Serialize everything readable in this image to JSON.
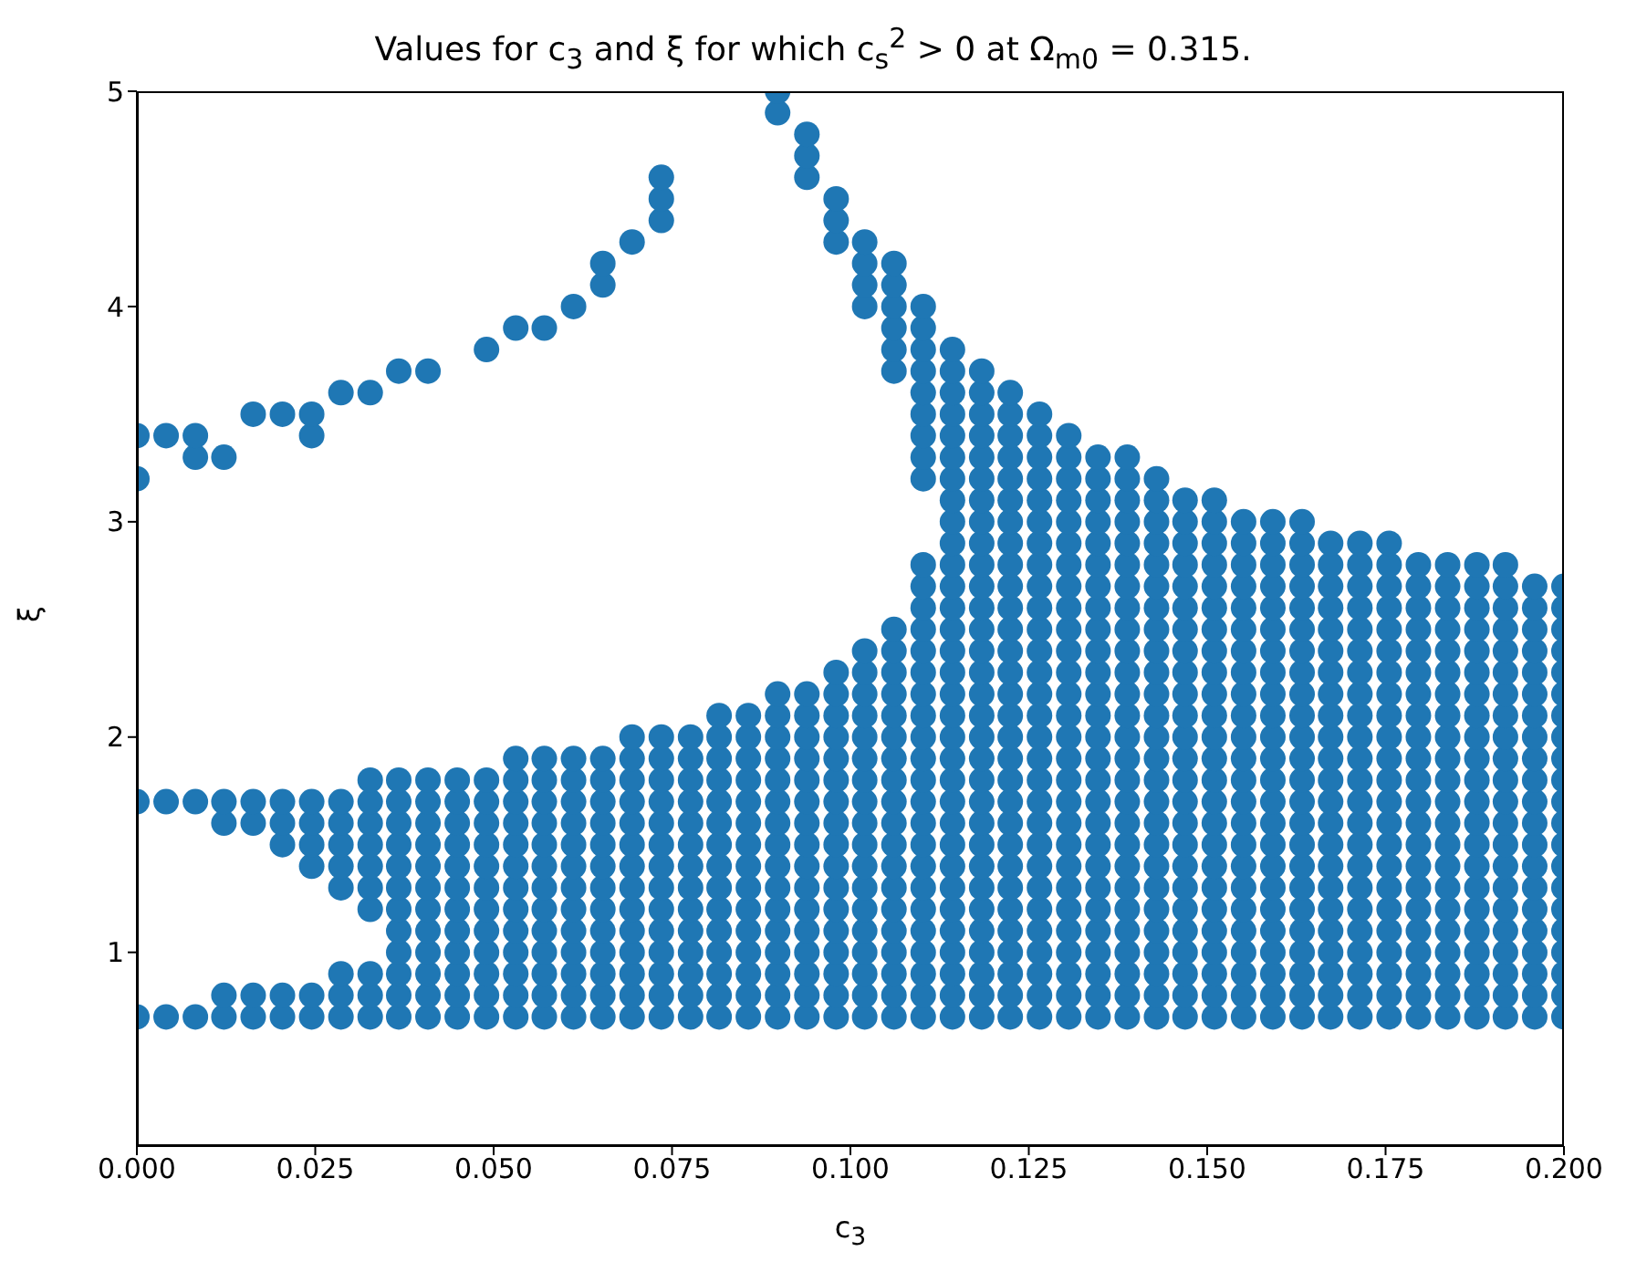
{
  "chart_data": {
    "type": "scatter",
    "title": "Values for c$_{3}$ and ξ for which c$_{s}$$^{2}$ > 0 at Ω$_{m0}$ = 0.315.",
    "xlabel": "c$_{3}$",
    "ylabel": "ξ",
    "color": "#1f77b4",
    "marker": "circle",
    "grid": false,
    "legend": false,
    "xlim": [
      0,
      0.2
    ],
    "ylim": [
      0.1,
      5
    ],
    "xticks": [
      {
        "value": 0,
        "label": "0.000"
      },
      {
        "value": 0.025,
        "label": "0.025"
      },
      {
        "value": 0.05,
        "label": "0.050"
      },
      {
        "value": 0.075,
        "label": "0.075"
      },
      {
        "value": 0.1,
        "label": "0.100"
      },
      {
        "value": 0.125,
        "label": "0.125"
      },
      {
        "value": 0.15,
        "label": "0.150"
      },
      {
        "value": 0.175,
        "label": "0.175"
      },
      {
        "value": 0.2,
        "label": "0.200"
      }
    ],
    "yticks": [
      1,
      2,
      3,
      4,
      5
    ],
    "series": [
      {
        "x": [
          0,
          0,
          0,
          0
        ],
        "values": [
          0.7,
          1.7,
          3.2,
          3.4
        ]
      },
      {
        "x": [
          0.0041,
          0.0041,
          0.0041
        ],
        "values": [
          0.7,
          1.7,
          3.4
        ]
      },
      {
        "x": [
          0.0082,
          0.0082,
          0.0082,
          0.0082
        ],
        "values": [
          0.7,
          1.7,
          3.3,
          3.4
        ]
      },
      {
        "x": [
          0.0122,
          0.0122,
          0.0122,
          0.0122,
          0.0122
        ],
        "values": [
          0.7,
          0.8,
          1.6,
          1.7,
          3.3
        ]
      },
      {
        "x": [
          0.0163,
          0.0163,
          0.0163,
          0.0163,
          0.0163
        ],
        "values": [
          0.7,
          0.8,
          1.6,
          1.7,
          3.5
        ]
      },
      {
        "x": [
          0.0204,
          0.0204,
          0.0204,
          0.0204,
          0.0204,
          0.0204
        ],
        "values": [
          0.7,
          0.8,
          1.5,
          1.6,
          1.7,
          3.5
        ]
      },
      {
        "x": [
          0.0245,
          0.0245,
          0.0245,
          0.0245,
          0.0245,
          0.0245,
          0.0245,
          0.0245
        ],
        "values": [
          0.7,
          0.8,
          1.4,
          1.5,
          1.6,
          1.7,
          3.4,
          3.5
        ]
      },
      {
        "x": [
          0.0286,
          0.0286,
          0.0286,
          0.0286,
          0.0286,
          0.0286,
          0.0286,
          0.0286,
          0.0286
        ],
        "values": [
          0.7,
          0.8,
          0.9,
          1.3,
          1.4,
          1.5,
          1.6,
          1.7,
          3.6
        ]
      },
      {
        "x": [
          0.0327,
          0.0327,
          0.0327,
          0.0327,
          0.0327,
          0.0327,
          0.0327,
          0.0327,
          0.0327,
          0.0327,
          0.0327
        ],
        "values": [
          0.7,
          0.8,
          0.9,
          1.2,
          1.3,
          1.4,
          1.5,
          1.6,
          1.7,
          1.8,
          3.6
        ]
      },
      {
        "x": [
          0.0367,
          0.0367,
          0.0367,
          0.0367,
          0.0367,
          0.0367,
          0.0367,
          0.0367,
          0.0367,
          0.0367,
          0.0367,
          0.0367,
          0.0367
        ],
        "values": [
          0.7,
          0.8,
          0.9,
          1,
          1.1,
          1.2,
          1.3,
          1.4,
          1.5,
          1.6,
          1.7,
          1.8,
          3.7
        ]
      },
      {
        "x": [
          0.0408,
          0.0408,
          0.0408,
          0.0408,
          0.0408,
          0.0408,
          0.0408,
          0.0408,
          0.0408,
          0.0408,
          0.0408,
          0.0408,
          0.0408
        ],
        "values": [
          0.7,
          0.8,
          0.9,
          1,
          1.1,
          1.2,
          1.3,
          1.4,
          1.5,
          1.6,
          1.7,
          1.8,
          3.7
        ]
      },
      {
        "x": [
          0.0449,
          0.0449,
          0.0449,
          0.0449,
          0.0449,
          0.0449,
          0.0449,
          0.0449,
          0.0449,
          0.0449,
          0.0449,
          0.0449
        ],
        "values": [
          0.7,
          0.8,
          0.9,
          1,
          1.1,
          1.2,
          1.3,
          1.4,
          1.5,
          1.6,
          1.7,
          1.8
        ]
      },
      {
        "x": [
          0.049,
          0.049,
          0.049,
          0.049,
          0.049,
          0.049,
          0.049,
          0.049,
          0.049,
          0.049,
          0.049,
          0.049,
          0.049
        ],
        "values": [
          0.7,
          0.8,
          0.9,
          1,
          1.1,
          1.2,
          1.3,
          1.4,
          1.5,
          1.6,
          1.7,
          1.8,
          3.8
        ]
      },
      {
        "x": [
          0.0531,
          0.0531,
          0.0531,
          0.0531,
          0.0531,
          0.0531,
          0.0531,
          0.0531,
          0.0531,
          0.0531,
          0.0531,
          0.0531,
          0.0531,
          0.0531
        ],
        "values": [
          0.7,
          0.8,
          0.9,
          1,
          1.1,
          1.2,
          1.3,
          1.4,
          1.5,
          1.6,
          1.7,
          1.8,
          1.9,
          3.9
        ]
      },
      {
        "x": [
          0.0571,
          0.0571,
          0.0571,
          0.0571,
          0.0571,
          0.0571,
          0.0571,
          0.0571,
          0.0571,
          0.0571,
          0.0571,
          0.0571,
          0.0571,
          0.0571
        ],
        "values": [
          0.7,
          0.8,
          0.9,
          1,
          1.1,
          1.2,
          1.3,
          1.4,
          1.5,
          1.6,
          1.7,
          1.8,
          1.9,
          3.9
        ]
      },
      {
        "x": [
          0.0612,
          0.0612,
          0.0612,
          0.0612,
          0.0612,
          0.0612,
          0.0612,
          0.0612,
          0.0612,
          0.0612,
          0.0612,
          0.0612,
          0.0612,
          0.0612
        ],
        "values": [
          0.7,
          0.8,
          0.9,
          1,
          1.1,
          1.2,
          1.3,
          1.4,
          1.5,
          1.6,
          1.7,
          1.8,
          1.9,
          4
        ]
      },
      {
        "x": [
          0.0653,
          0.0653,
          0.0653,
          0.0653,
          0.0653,
          0.0653,
          0.0653,
          0.0653,
          0.0653,
          0.0653,
          0.0653,
          0.0653,
          0.0653,
          0.0653,
          0.0653
        ],
        "values": [
          0.7,
          0.8,
          0.9,
          1,
          1.1,
          1.2,
          1.3,
          1.4,
          1.5,
          1.6,
          1.7,
          1.8,
          1.9,
          4.1,
          4.2
        ]
      },
      {
        "x": [
          0.0694,
          0.0694,
          0.0694,
          0.0694,
          0.0694,
          0.0694,
          0.0694,
          0.0694,
          0.0694,
          0.0694,
          0.0694,
          0.0694,
          0.0694,
          0.0694,
          0.0694
        ],
        "values": [
          0.7,
          0.8,
          0.9,
          1,
          1.1,
          1.2,
          1.3,
          1.4,
          1.5,
          1.6,
          1.7,
          1.8,
          1.9,
          2,
          4.3
        ]
      },
      {
        "x": [
          0.0735,
          0.0735,
          0.0735,
          0.0735,
          0.0735,
          0.0735,
          0.0735,
          0.0735,
          0.0735,
          0.0735,
          0.0735,
          0.0735,
          0.0735,
          0.0735,
          0.0735,
          0.0735,
          0.0735
        ],
        "values": [
          0.7,
          0.8,
          0.9,
          1,
          1.1,
          1.2,
          1.3,
          1.4,
          1.5,
          1.6,
          1.7,
          1.8,
          1.9,
          2,
          4.4,
          4.5,
          4.6
        ]
      },
      {
        "x": [
          0.0776,
          0.0776,
          0.0776,
          0.0776,
          0.0776,
          0.0776,
          0.0776,
          0.0776,
          0.0776,
          0.0776,
          0.0776,
          0.0776,
          0.0776,
          0.0776
        ],
        "values": [
          0.7,
          0.8,
          0.9,
          1,
          1.1,
          1.2,
          1.3,
          1.4,
          1.5,
          1.6,
          1.7,
          1.8,
          1.9,
          2
        ]
      },
      {
        "x": [
          0.0816,
          0.0816,
          0.0816,
          0.0816,
          0.0816,
          0.0816,
          0.0816,
          0.0816,
          0.0816,
          0.0816,
          0.0816,
          0.0816,
          0.0816,
          0.0816,
          0.0816
        ],
        "values": [
          0.7,
          0.8,
          0.9,
          1,
          1.1,
          1.2,
          1.3,
          1.4,
          1.5,
          1.6,
          1.7,
          1.8,
          1.9,
          2,
          2.1
        ]
      },
      {
        "x": [
          0.0857,
          0.0857,
          0.0857,
          0.0857,
          0.0857,
          0.0857,
          0.0857,
          0.0857,
          0.0857,
          0.0857,
          0.0857,
          0.0857,
          0.0857,
          0.0857,
          0.0857
        ],
        "values": [
          0.7,
          0.8,
          0.9,
          1,
          1.1,
          1.2,
          1.3,
          1.4,
          1.5,
          1.6,
          1.7,
          1.8,
          1.9,
          2,
          2.1
        ]
      },
      {
        "x": [
          0.0898,
          0.0898,
          0.0898,
          0.0898,
          0.0898,
          0.0898,
          0.0898,
          0.0898,
          0.0898,
          0.0898,
          0.0898,
          0.0898,
          0.0898,
          0.0898,
          0.0898,
          0.0898,
          0.0898,
          0.0898
        ],
        "values": [
          0.7,
          0.8,
          0.9,
          1,
          1.1,
          1.2,
          1.3,
          1.4,
          1.5,
          1.6,
          1.7,
          1.8,
          1.9,
          2,
          2.1,
          2.2,
          4.9,
          5
        ]
      },
      {
        "x": [
          0.0939,
          0.0939,
          0.0939,
          0.0939,
          0.0939,
          0.0939,
          0.0939,
          0.0939,
          0.0939,
          0.0939,
          0.0939,
          0.0939,
          0.0939,
          0.0939,
          0.0939,
          0.0939,
          0.0939,
          0.0939,
          0.0939
        ],
        "values": [
          0.7,
          0.8,
          0.9,
          1,
          1.1,
          1.2,
          1.3,
          1.4,
          1.5,
          1.6,
          1.7,
          1.8,
          1.9,
          2,
          2.1,
          2.2,
          4.6,
          4.7,
          4.8
        ]
      },
      {
        "x": [
          0.098,
          0.098,
          0.098,
          0.098,
          0.098,
          0.098,
          0.098,
          0.098,
          0.098,
          0.098,
          0.098,
          0.098,
          0.098,
          0.098,
          0.098,
          0.098,
          0.098,
          0.098,
          0.098,
          0.098
        ],
        "values": [
          0.7,
          0.8,
          0.9,
          1,
          1.1,
          1.2,
          1.3,
          1.4,
          1.5,
          1.6,
          1.7,
          1.8,
          1.9,
          2,
          2.1,
          2.2,
          2.3,
          4.3,
          4.4,
          4.5
        ]
      },
      {
        "x": [
          0.102,
          0.102,
          0.102,
          0.102,
          0.102,
          0.102,
          0.102,
          0.102,
          0.102,
          0.102,
          0.102,
          0.102,
          0.102,
          0.102,
          0.102,
          0.102,
          0.102,
          0.102,
          0.102,
          0.102,
          0.102,
          0.102
        ],
        "values": [
          0.7,
          0.8,
          0.9,
          1,
          1.1,
          1.2,
          1.3,
          1.4,
          1.5,
          1.6,
          1.7,
          1.8,
          1.9,
          2,
          2.1,
          2.2,
          2.3,
          2.4,
          4,
          4.1,
          4.2,
          4.3
        ]
      },
      {
        "x": [
          0.1061,
          0.1061,
          0.1061,
          0.1061,
          0.1061,
          0.1061,
          0.1061,
          0.1061,
          0.1061,
          0.1061,
          0.1061,
          0.1061,
          0.1061,
          0.1061,
          0.1061,
          0.1061,
          0.1061,
          0.1061,
          0.1061,
          0.1061,
          0.1061,
          0.1061,
          0.1061,
          0.1061,
          0.1061
        ],
        "values": [
          0.7,
          0.8,
          0.9,
          1,
          1.1,
          1.2,
          1.3,
          1.4,
          1.5,
          1.6,
          1.7,
          1.8,
          1.9,
          2,
          2.1,
          2.2,
          2.3,
          2.4,
          2.5,
          3.7,
          3.8,
          3.9,
          4,
          4.1,
          4.2
        ]
      },
      {
        "x": [
          0.1102,
          0.1102,
          0.1102,
          0.1102,
          0.1102,
          0.1102,
          0.1102,
          0.1102,
          0.1102,
          0.1102,
          0.1102,
          0.1102,
          0.1102,
          0.1102,
          0.1102,
          0.1102,
          0.1102,
          0.1102,
          0.1102,
          0.1102,
          0.1102,
          0.1102,
          0.1102,
          0.1102,
          0.1102,
          0.1102,
          0.1102,
          0.1102,
          0.1102,
          0.1102,
          0.1102
        ],
        "values": [
          0.7,
          0.8,
          0.9,
          1,
          1.1,
          1.2,
          1.3,
          1.4,
          1.5,
          1.6,
          1.7,
          1.8,
          1.9,
          2,
          2.1,
          2.2,
          2.3,
          2.4,
          2.5,
          2.6,
          2.7,
          2.8,
          3.2,
          3.3,
          3.4,
          3.5,
          3.6,
          3.7,
          3.8,
          3.9,
          4
        ]
      },
      {
        "x": [
          0.1143,
          0.1143,
          0.1143,
          0.1143,
          0.1143,
          0.1143,
          0.1143,
          0.1143,
          0.1143,
          0.1143,
          0.1143,
          0.1143,
          0.1143,
          0.1143,
          0.1143,
          0.1143,
          0.1143,
          0.1143,
          0.1143,
          0.1143,
          0.1143,
          0.1143,
          0.1143,
          0.1143,
          0.1143,
          0.1143,
          0.1143,
          0.1143,
          0.1143,
          0.1143,
          0.1143,
          0.1143
        ],
        "values": [
          0.7,
          0.8,
          0.9,
          1,
          1.1,
          1.2,
          1.3,
          1.4,
          1.5,
          1.6,
          1.7,
          1.8,
          1.9,
          2,
          2.1,
          2.2,
          2.3,
          2.4,
          2.5,
          2.6,
          2.7,
          2.8,
          2.9,
          3,
          3.1,
          3.2,
          3.3,
          3.4,
          3.5,
          3.6,
          3.7,
          3.8
        ]
      },
      {
        "x": [
          0.1184,
          0.1184,
          0.1184,
          0.1184,
          0.1184,
          0.1184,
          0.1184,
          0.1184,
          0.1184,
          0.1184,
          0.1184,
          0.1184,
          0.1184,
          0.1184,
          0.1184,
          0.1184,
          0.1184,
          0.1184,
          0.1184,
          0.1184,
          0.1184,
          0.1184,
          0.1184,
          0.1184,
          0.1184,
          0.1184,
          0.1184,
          0.1184,
          0.1184,
          0.1184,
          0.1184
        ],
        "values": [
          0.7,
          0.8,
          0.9,
          1,
          1.1,
          1.2,
          1.3,
          1.4,
          1.5,
          1.6,
          1.7,
          1.8,
          1.9,
          2,
          2.1,
          2.2,
          2.3,
          2.4,
          2.5,
          2.6,
          2.7,
          2.8,
          2.9,
          3,
          3.1,
          3.2,
          3.3,
          3.4,
          3.5,
          3.6,
          3.7
        ]
      },
      {
        "x": [
          0.1224,
          0.1224,
          0.1224,
          0.1224,
          0.1224,
          0.1224,
          0.1224,
          0.1224,
          0.1224,
          0.1224,
          0.1224,
          0.1224,
          0.1224,
          0.1224,
          0.1224,
          0.1224,
          0.1224,
          0.1224,
          0.1224,
          0.1224,
          0.1224,
          0.1224,
          0.1224,
          0.1224,
          0.1224,
          0.1224,
          0.1224,
          0.1224,
          0.1224,
          0.1224
        ],
        "values": [
          0.7,
          0.8,
          0.9,
          1,
          1.1,
          1.2,
          1.3,
          1.4,
          1.5,
          1.6,
          1.7,
          1.8,
          1.9,
          2,
          2.1,
          2.2,
          2.3,
          2.4,
          2.5,
          2.6,
          2.7,
          2.8,
          2.9,
          3,
          3.1,
          3.2,
          3.3,
          3.4,
          3.5,
          3.6
        ]
      },
      {
        "x": [
          0.1265,
          0.1265,
          0.1265,
          0.1265,
          0.1265,
          0.1265,
          0.1265,
          0.1265,
          0.1265,
          0.1265,
          0.1265,
          0.1265,
          0.1265,
          0.1265,
          0.1265,
          0.1265,
          0.1265,
          0.1265,
          0.1265,
          0.1265,
          0.1265,
          0.1265,
          0.1265,
          0.1265,
          0.1265,
          0.1265,
          0.1265,
          0.1265,
          0.1265
        ],
        "values": [
          0.7,
          0.8,
          0.9,
          1,
          1.1,
          1.2,
          1.3,
          1.4,
          1.5,
          1.6,
          1.7,
          1.8,
          1.9,
          2,
          2.1,
          2.2,
          2.3,
          2.4,
          2.5,
          2.6,
          2.7,
          2.8,
          2.9,
          3,
          3.1,
          3.2,
          3.3,
          3.4,
          3.5
        ]
      },
      {
        "x": [
          0.1306,
          0.1306,
          0.1306,
          0.1306,
          0.1306,
          0.1306,
          0.1306,
          0.1306,
          0.1306,
          0.1306,
          0.1306,
          0.1306,
          0.1306,
          0.1306,
          0.1306,
          0.1306,
          0.1306,
          0.1306,
          0.1306,
          0.1306,
          0.1306,
          0.1306,
          0.1306,
          0.1306,
          0.1306,
          0.1306,
          0.1306,
          0.1306
        ],
        "values": [
          0.7,
          0.8,
          0.9,
          1,
          1.1,
          1.2,
          1.3,
          1.4,
          1.5,
          1.6,
          1.7,
          1.8,
          1.9,
          2,
          2.1,
          2.2,
          2.3,
          2.4,
          2.5,
          2.6,
          2.7,
          2.8,
          2.9,
          3,
          3.1,
          3.2,
          3.3,
          3.4
        ]
      },
      {
        "x": [
          0.1347,
          0.1347,
          0.1347,
          0.1347,
          0.1347,
          0.1347,
          0.1347,
          0.1347,
          0.1347,
          0.1347,
          0.1347,
          0.1347,
          0.1347,
          0.1347,
          0.1347,
          0.1347,
          0.1347,
          0.1347,
          0.1347,
          0.1347,
          0.1347,
          0.1347,
          0.1347,
          0.1347,
          0.1347,
          0.1347,
          0.1347
        ],
        "values": [
          0.7,
          0.8,
          0.9,
          1,
          1.1,
          1.2,
          1.3,
          1.4,
          1.5,
          1.6,
          1.7,
          1.8,
          1.9,
          2,
          2.1,
          2.2,
          2.3,
          2.4,
          2.5,
          2.6,
          2.7,
          2.8,
          2.9,
          3,
          3.1,
          3.2,
          3.3
        ]
      },
      {
        "x": [
          0.1388,
          0.1388,
          0.1388,
          0.1388,
          0.1388,
          0.1388,
          0.1388,
          0.1388,
          0.1388,
          0.1388,
          0.1388,
          0.1388,
          0.1388,
          0.1388,
          0.1388,
          0.1388,
          0.1388,
          0.1388,
          0.1388,
          0.1388,
          0.1388,
          0.1388,
          0.1388,
          0.1388,
          0.1388,
          0.1388,
          0.1388
        ],
        "values": [
          0.7,
          0.8,
          0.9,
          1,
          1.1,
          1.2,
          1.3,
          1.4,
          1.5,
          1.6,
          1.7,
          1.8,
          1.9,
          2,
          2.1,
          2.2,
          2.3,
          2.4,
          2.5,
          2.6,
          2.7,
          2.8,
          2.9,
          3,
          3.1,
          3.2,
          3.3
        ]
      },
      {
        "x": [
          0.1429,
          0.1429,
          0.1429,
          0.1429,
          0.1429,
          0.1429,
          0.1429,
          0.1429,
          0.1429,
          0.1429,
          0.1429,
          0.1429,
          0.1429,
          0.1429,
          0.1429,
          0.1429,
          0.1429,
          0.1429,
          0.1429,
          0.1429,
          0.1429,
          0.1429,
          0.1429,
          0.1429,
          0.1429,
          0.1429
        ],
        "values": [
          0.7,
          0.8,
          0.9,
          1,
          1.1,
          1.2,
          1.3,
          1.4,
          1.5,
          1.6,
          1.7,
          1.8,
          1.9,
          2,
          2.1,
          2.2,
          2.3,
          2.4,
          2.5,
          2.6,
          2.7,
          2.8,
          2.9,
          3,
          3.1,
          3.2
        ]
      },
      {
        "x": [
          0.1469,
          0.1469,
          0.1469,
          0.1469,
          0.1469,
          0.1469,
          0.1469,
          0.1469,
          0.1469,
          0.1469,
          0.1469,
          0.1469,
          0.1469,
          0.1469,
          0.1469,
          0.1469,
          0.1469,
          0.1469,
          0.1469,
          0.1469,
          0.1469,
          0.1469,
          0.1469,
          0.1469,
          0.1469
        ],
        "values": [
          0.7,
          0.8,
          0.9,
          1,
          1.1,
          1.2,
          1.3,
          1.4,
          1.5,
          1.6,
          1.7,
          1.8,
          1.9,
          2,
          2.1,
          2.2,
          2.3,
          2.4,
          2.5,
          2.6,
          2.7,
          2.8,
          2.9,
          3,
          3.1
        ]
      },
      {
        "x": [
          0.151,
          0.151,
          0.151,
          0.151,
          0.151,
          0.151,
          0.151,
          0.151,
          0.151,
          0.151,
          0.151,
          0.151,
          0.151,
          0.151,
          0.151,
          0.151,
          0.151,
          0.151,
          0.151,
          0.151,
          0.151,
          0.151,
          0.151,
          0.151,
          0.151
        ],
        "values": [
          0.7,
          0.8,
          0.9,
          1,
          1.1,
          1.2,
          1.3,
          1.4,
          1.5,
          1.6,
          1.7,
          1.8,
          1.9,
          2,
          2.1,
          2.2,
          2.3,
          2.4,
          2.5,
          2.6,
          2.7,
          2.8,
          2.9,
          3,
          3.1
        ]
      },
      {
        "x": [
          0.1551,
          0.1551,
          0.1551,
          0.1551,
          0.1551,
          0.1551,
          0.1551,
          0.1551,
          0.1551,
          0.1551,
          0.1551,
          0.1551,
          0.1551,
          0.1551,
          0.1551,
          0.1551,
          0.1551,
          0.1551,
          0.1551,
          0.1551,
          0.1551,
          0.1551,
          0.1551,
          0.1551
        ],
        "values": [
          0.7,
          0.8,
          0.9,
          1,
          1.1,
          1.2,
          1.3,
          1.4,
          1.5,
          1.6,
          1.7,
          1.8,
          1.9,
          2,
          2.1,
          2.2,
          2.3,
          2.4,
          2.5,
          2.6,
          2.7,
          2.8,
          2.9,
          3
        ]
      },
      {
        "x": [
          0.1592,
          0.1592,
          0.1592,
          0.1592,
          0.1592,
          0.1592,
          0.1592,
          0.1592,
          0.1592,
          0.1592,
          0.1592,
          0.1592,
          0.1592,
          0.1592,
          0.1592,
          0.1592,
          0.1592,
          0.1592,
          0.1592,
          0.1592,
          0.1592,
          0.1592,
          0.1592,
          0.1592
        ],
        "values": [
          0.7,
          0.8,
          0.9,
          1,
          1.1,
          1.2,
          1.3,
          1.4,
          1.5,
          1.6,
          1.7,
          1.8,
          1.9,
          2,
          2.1,
          2.2,
          2.3,
          2.4,
          2.5,
          2.6,
          2.7,
          2.8,
          2.9,
          3
        ]
      },
      {
        "x": [
          0.1633,
          0.1633,
          0.1633,
          0.1633,
          0.1633,
          0.1633,
          0.1633,
          0.1633,
          0.1633,
          0.1633,
          0.1633,
          0.1633,
          0.1633,
          0.1633,
          0.1633,
          0.1633,
          0.1633,
          0.1633,
          0.1633,
          0.1633,
          0.1633,
          0.1633,
          0.1633,
          0.1633
        ],
        "values": [
          0.7,
          0.8,
          0.9,
          1,
          1.1,
          1.2,
          1.3,
          1.4,
          1.5,
          1.6,
          1.7,
          1.8,
          1.9,
          2,
          2.1,
          2.2,
          2.3,
          2.4,
          2.5,
          2.6,
          2.7,
          2.8,
          2.9,
          3
        ]
      },
      {
        "x": [
          0.1673,
          0.1673,
          0.1673,
          0.1673,
          0.1673,
          0.1673,
          0.1673,
          0.1673,
          0.1673,
          0.1673,
          0.1673,
          0.1673,
          0.1673,
          0.1673,
          0.1673,
          0.1673,
          0.1673,
          0.1673,
          0.1673,
          0.1673,
          0.1673,
          0.1673,
          0.1673
        ],
        "values": [
          0.7,
          0.8,
          0.9,
          1,
          1.1,
          1.2,
          1.3,
          1.4,
          1.5,
          1.6,
          1.7,
          1.8,
          1.9,
          2,
          2.1,
          2.2,
          2.3,
          2.4,
          2.5,
          2.6,
          2.7,
          2.8,
          2.9
        ]
      },
      {
        "x": [
          0.1714,
          0.1714,
          0.1714,
          0.1714,
          0.1714,
          0.1714,
          0.1714,
          0.1714,
          0.1714,
          0.1714,
          0.1714,
          0.1714,
          0.1714,
          0.1714,
          0.1714,
          0.1714,
          0.1714,
          0.1714,
          0.1714,
          0.1714,
          0.1714,
          0.1714,
          0.1714
        ],
        "values": [
          0.7,
          0.8,
          0.9,
          1,
          1.1,
          1.2,
          1.3,
          1.4,
          1.5,
          1.6,
          1.7,
          1.8,
          1.9,
          2,
          2.1,
          2.2,
          2.3,
          2.4,
          2.5,
          2.6,
          2.7,
          2.8,
          2.9
        ]
      },
      {
        "x": [
          0.1755,
          0.1755,
          0.1755,
          0.1755,
          0.1755,
          0.1755,
          0.1755,
          0.1755,
          0.1755,
          0.1755,
          0.1755,
          0.1755,
          0.1755,
          0.1755,
          0.1755,
          0.1755,
          0.1755,
          0.1755,
          0.1755,
          0.1755,
          0.1755,
          0.1755,
          0.1755
        ],
        "values": [
          0.7,
          0.8,
          0.9,
          1,
          1.1,
          1.2,
          1.3,
          1.4,
          1.5,
          1.6,
          1.7,
          1.8,
          1.9,
          2,
          2.1,
          2.2,
          2.3,
          2.4,
          2.5,
          2.6,
          2.7,
          2.8,
          2.9
        ]
      },
      {
        "x": [
          0.1796,
          0.1796,
          0.1796,
          0.1796,
          0.1796,
          0.1796,
          0.1796,
          0.1796,
          0.1796,
          0.1796,
          0.1796,
          0.1796,
          0.1796,
          0.1796,
          0.1796,
          0.1796,
          0.1796,
          0.1796,
          0.1796,
          0.1796,
          0.1796,
          0.1796
        ],
        "values": [
          0.7,
          0.8,
          0.9,
          1,
          1.1,
          1.2,
          1.3,
          1.4,
          1.5,
          1.6,
          1.7,
          1.8,
          1.9,
          2,
          2.1,
          2.2,
          2.3,
          2.4,
          2.5,
          2.6,
          2.7,
          2.8
        ]
      },
      {
        "x": [
          0.1837,
          0.1837,
          0.1837,
          0.1837,
          0.1837,
          0.1837,
          0.1837,
          0.1837,
          0.1837,
          0.1837,
          0.1837,
          0.1837,
          0.1837,
          0.1837,
          0.1837,
          0.1837,
          0.1837,
          0.1837,
          0.1837,
          0.1837,
          0.1837,
          0.1837
        ],
        "values": [
          0.7,
          0.8,
          0.9,
          1,
          1.1,
          1.2,
          1.3,
          1.4,
          1.5,
          1.6,
          1.7,
          1.8,
          1.9,
          2,
          2.1,
          2.2,
          2.3,
          2.4,
          2.5,
          2.6,
          2.7,
          2.8
        ]
      },
      {
        "x": [
          0.1878,
          0.1878,
          0.1878,
          0.1878,
          0.1878,
          0.1878,
          0.1878,
          0.1878,
          0.1878,
          0.1878,
          0.1878,
          0.1878,
          0.1878,
          0.1878,
          0.1878,
          0.1878,
          0.1878,
          0.1878,
          0.1878,
          0.1878,
          0.1878,
          0.1878
        ],
        "values": [
          0.7,
          0.8,
          0.9,
          1,
          1.1,
          1.2,
          1.3,
          1.4,
          1.5,
          1.6,
          1.7,
          1.8,
          1.9,
          2,
          2.1,
          2.2,
          2.3,
          2.4,
          2.5,
          2.6,
          2.7,
          2.8
        ]
      },
      {
        "x": [
          0.1918,
          0.1918,
          0.1918,
          0.1918,
          0.1918,
          0.1918,
          0.1918,
          0.1918,
          0.1918,
          0.1918,
          0.1918,
          0.1918,
          0.1918,
          0.1918,
          0.1918,
          0.1918,
          0.1918,
          0.1918,
          0.1918,
          0.1918,
          0.1918,
          0.1918
        ],
        "values": [
          0.7,
          0.8,
          0.9,
          1,
          1.1,
          1.2,
          1.3,
          1.4,
          1.5,
          1.6,
          1.7,
          1.8,
          1.9,
          2,
          2.1,
          2.2,
          2.3,
          2.4,
          2.5,
          2.6,
          2.7,
          2.8
        ]
      },
      {
        "x": [
          0.1959,
          0.1959,
          0.1959,
          0.1959,
          0.1959,
          0.1959,
          0.1959,
          0.1959,
          0.1959,
          0.1959,
          0.1959,
          0.1959,
          0.1959,
          0.1959,
          0.1959,
          0.1959,
          0.1959,
          0.1959,
          0.1959,
          0.1959,
          0.1959
        ],
        "values": [
          0.7,
          0.8,
          0.9,
          1,
          1.1,
          1.2,
          1.3,
          1.4,
          1.5,
          1.6,
          1.7,
          1.8,
          1.9,
          2,
          2.1,
          2.2,
          2.3,
          2.4,
          2.5,
          2.6,
          2.7
        ]
      },
      {
        "x": [
          0.2,
          0.2,
          0.2,
          0.2,
          0.2,
          0.2,
          0.2,
          0.2,
          0.2,
          0.2,
          0.2,
          0.2,
          0.2,
          0.2,
          0.2,
          0.2,
          0.2,
          0.2,
          0.2,
          0.2,
          0.2
        ],
        "values": [
          0.7,
          0.8,
          0.9,
          1,
          1.1,
          1.2,
          1.3,
          1.4,
          1.5,
          1.6,
          1.7,
          1.8,
          1.9,
          2,
          2.1,
          2.2,
          2.3,
          2.4,
          2.5,
          2.6,
          2.7
        ]
      }
    ]
  }
}
